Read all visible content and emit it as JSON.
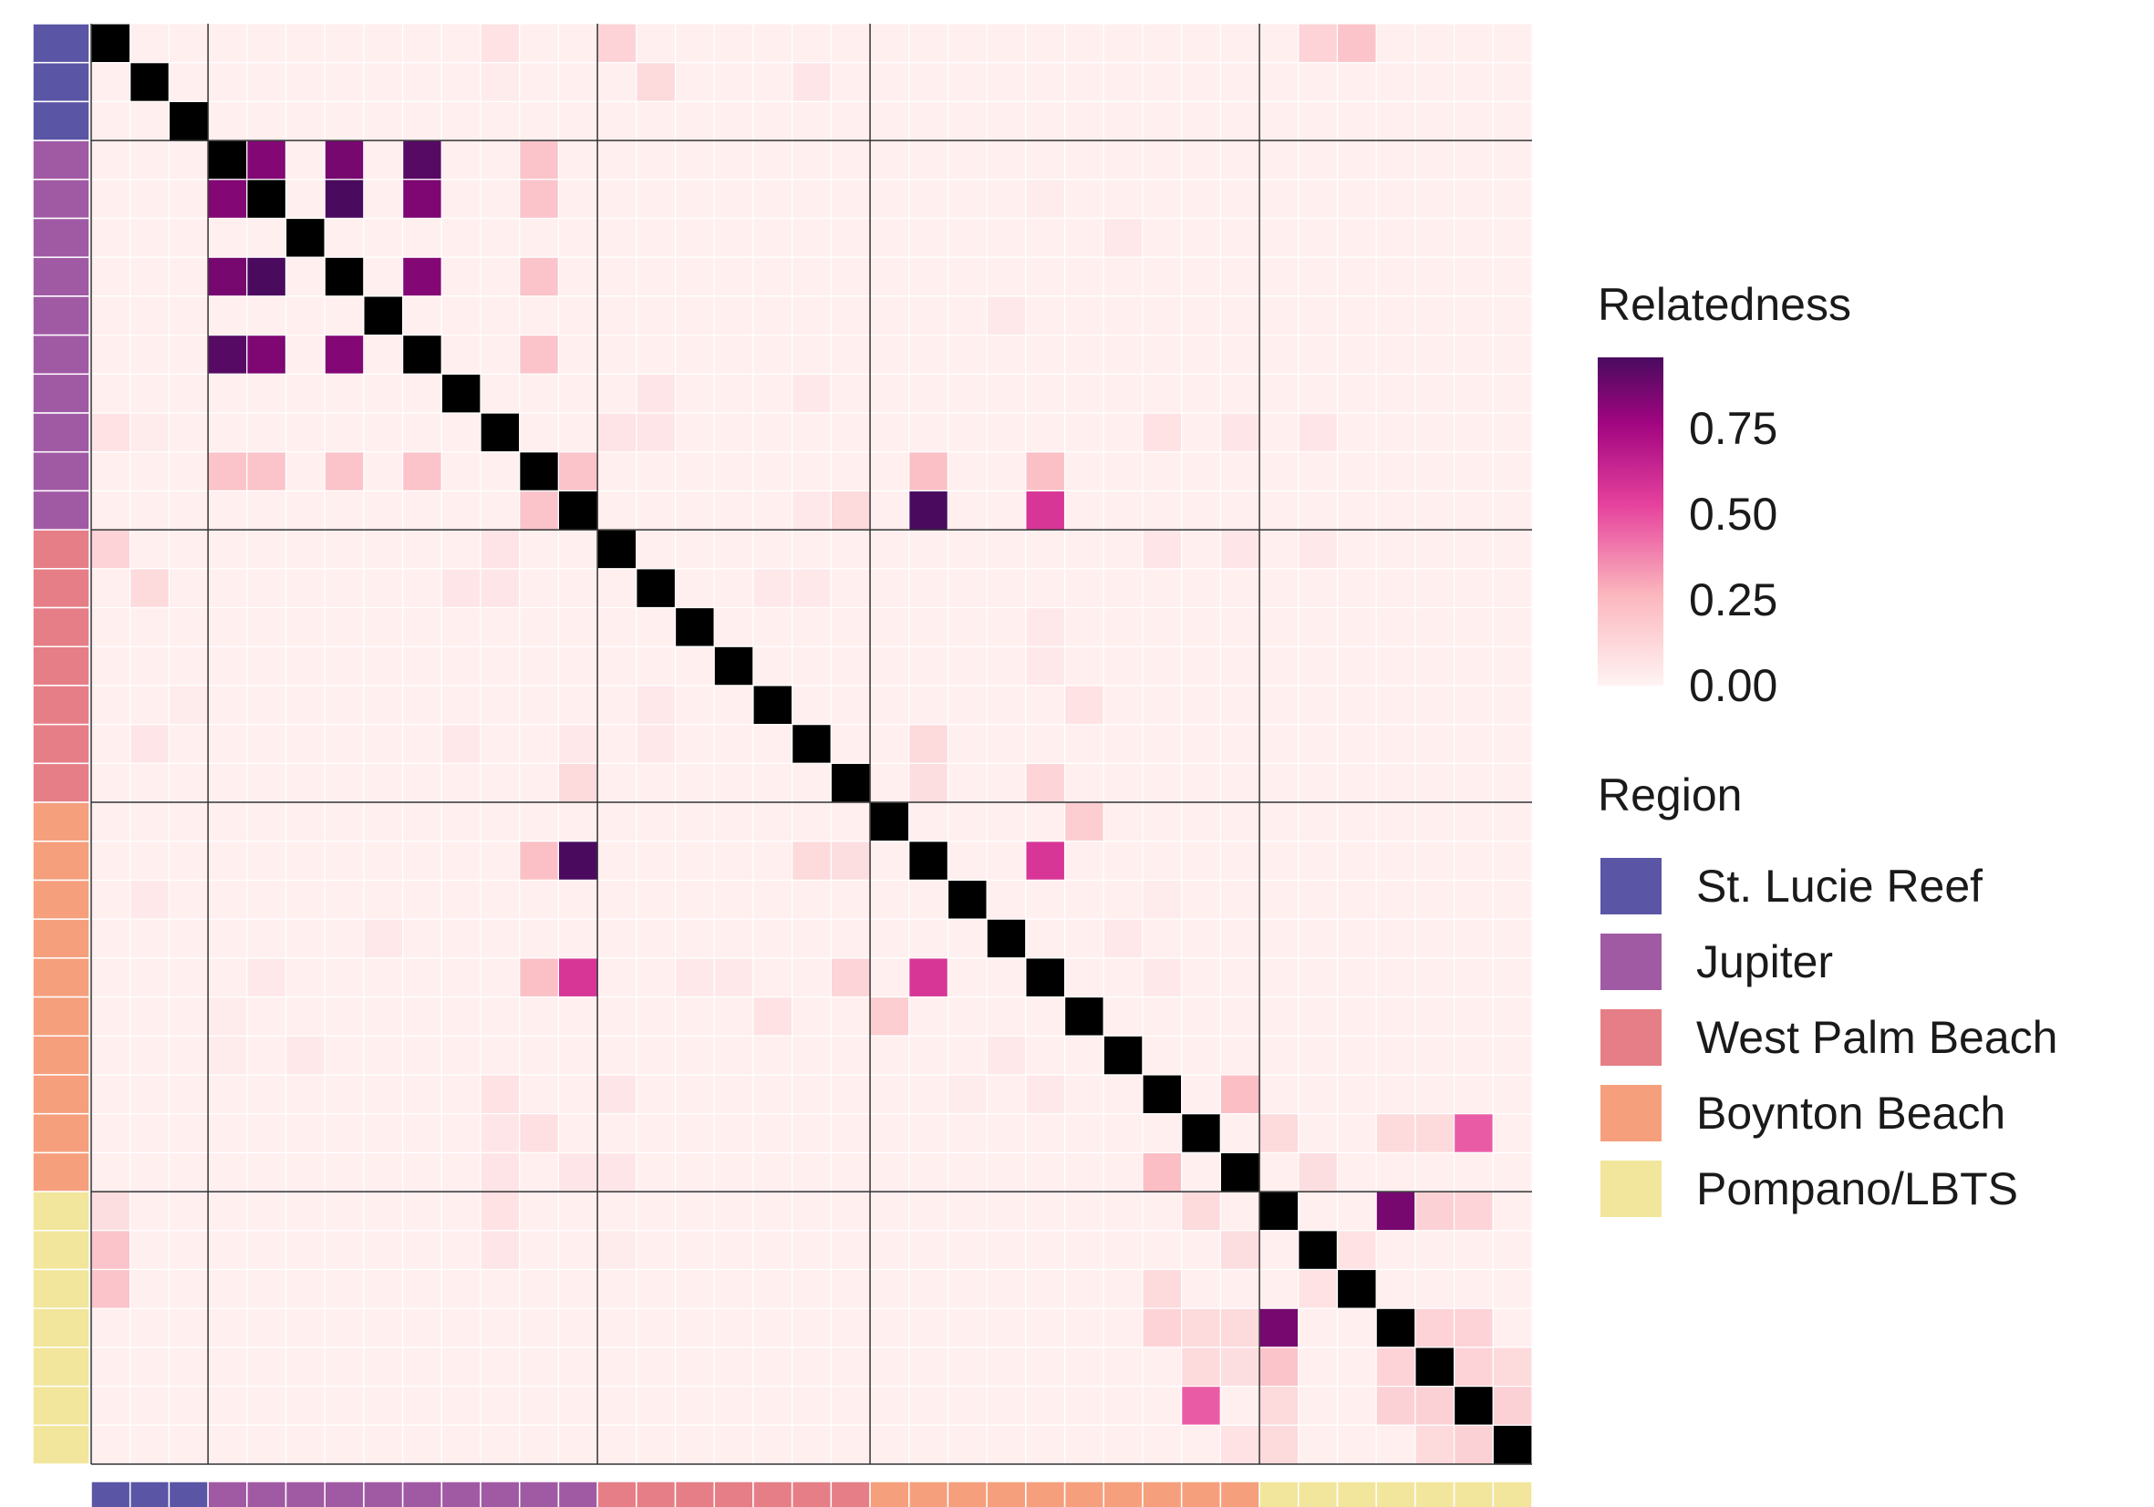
{
  "chart_data": {
    "type": "heatmap",
    "n": 37,
    "groups": [
      {
        "name": "St. Lucie Reef",
        "size": 3,
        "color": "#5b55a6"
      },
      {
        "name": "Jupiter",
        "size": 10,
        "color": "#a05aa4"
      },
      {
        "name": "West Palm Beach",
        "size": 7,
        "color": "#e67e87"
      },
      {
        "name": "Boynton Beach",
        "size": 10,
        "color": "#f59f7d"
      },
      {
        "name": "Pompano/LBTS",
        "size": 7,
        "color": "#f1e69c"
      }
    ],
    "diagonal_value": 1.0,
    "diagonal_color": "#000000",
    "baseline_value": 0.02,
    "values_upper": [
      [
        0,
        10,
        0.08
      ],
      [
        0,
        13,
        0.15
      ],
      [
        0,
        31,
        0.15
      ],
      [
        0,
        32,
        0.22
      ],
      [
        1,
        14,
        0.12
      ],
      [
        1,
        18,
        0.06
      ],
      [
        1,
        10,
        0.04
      ],
      [
        3,
        4,
        0.82
      ],
      [
        3,
        6,
        0.85
      ],
      [
        3,
        8,
        0.92
      ],
      [
        3,
        11,
        0.22
      ],
      [
        4,
        6,
        0.95
      ],
      [
        4,
        8,
        0.83
      ],
      [
        4,
        11,
        0.22
      ],
      [
        6,
        8,
        0.82
      ],
      [
        6,
        11,
        0.22
      ],
      [
        4,
        24,
        0.04
      ],
      [
        5,
        26,
        0.05
      ],
      [
        7,
        23,
        0.05
      ],
      [
        8,
        11,
        0.22
      ],
      [
        9,
        14,
        0.06
      ],
      [
        9,
        18,
        0.05
      ],
      [
        10,
        13,
        0.07
      ],
      [
        10,
        14,
        0.06
      ],
      [
        10,
        27,
        0.08
      ],
      [
        10,
        29,
        0.06
      ],
      [
        10,
        31,
        0.06
      ],
      [
        11,
        12,
        0.22
      ],
      [
        11,
        21,
        0.24
      ],
      [
        11,
        24,
        0.24
      ],
      [
        12,
        19,
        0.12
      ],
      [
        12,
        21,
        0.95
      ],
      [
        12,
        24,
        0.55
      ],
      [
        12,
        18,
        0.05
      ],
      [
        13,
        27,
        0.06
      ],
      [
        13,
        29,
        0.06
      ],
      [
        13,
        31,
        0.05
      ],
      [
        14,
        17,
        0.05
      ],
      [
        14,
        18,
        0.05
      ],
      [
        15,
        24,
        0.05
      ],
      [
        16,
        24,
        0.05
      ],
      [
        17,
        25,
        0.08
      ],
      [
        19,
        21,
        0.14
      ],
      [
        19,
        24,
        0.14
      ],
      [
        20,
        25,
        0.18
      ],
      [
        21,
        24,
        0.55
      ],
      [
        21,
        18,
        0.12
      ],
      [
        21,
        19,
        0.1
      ],
      [
        22,
        27,
        0.04
      ],
      [
        23,
        26,
        0.05
      ],
      [
        24,
        27,
        0.05
      ],
      [
        27,
        29,
        0.25
      ],
      [
        28,
        30,
        0.12
      ],
      [
        28,
        33,
        0.12
      ],
      [
        28,
        34,
        0.12
      ],
      [
        28,
        35,
        0.45
      ],
      [
        29,
        31,
        0.1
      ],
      [
        30,
        33,
        0.85
      ],
      [
        30,
        34,
        0.16
      ],
      [
        30,
        35,
        0.14
      ],
      [
        31,
        32,
        0.08
      ],
      [
        33,
        34,
        0.15
      ],
      [
        33,
        35,
        0.15
      ],
      [
        34,
        35,
        0.15
      ],
      [
        34,
        36,
        0.12
      ],
      [
        35,
        36,
        0.16
      ]
    ],
    "values_lower": [
      [
        28,
        11,
        0.09
      ],
      [
        28,
        10,
        0.06
      ],
      [
        29,
        10,
        0.07
      ],
      [
        31,
        0,
        0.22
      ],
      [
        30,
        0,
        0.1
      ],
      [
        30,
        10,
        0.08
      ],
      [
        29,
        12,
        0.06
      ],
      [
        31,
        13,
        0.04
      ],
      [
        32,
        27,
        0.12
      ],
      [
        33,
        27,
        0.15
      ],
      [
        33,
        29,
        0.12
      ],
      [
        33,
        28,
        0.12
      ],
      [
        34,
        29,
        0.1
      ],
      [
        34,
        30,
        0.22
      ],
      [
        34,
        33,
        0.15
      ],
      [
        35,
        28,
        0.45
      ],
      [
        35,
        30,
        0.12
      ],
      [
        35,
        33,
        0.16
      ],
      [
        35,
        34,
        0.16
      ],
      [
        36,
        29,
        0.08
      ],
      [
        36,
        30,
        0.12
      ],
      [
        22,
        1,
        0.05
      ],
      [
        24,
        4,
        0.05
      ],
      [
        25,
        3,
        0.04
      ],
      [
        26,
        3,
        0.04
      ],
      [
        17,
        2,
        0.04
      ]
    ],
    "legend": {
      "relatedness_title": "Relatedness",
      "ticks": [
        "0.75",
        "0.50",
        "0.25",
        "0.00"
      ],
      "tick_values": [
        0.75,
        0.5,
        0.25,
        0.0
      ],
      "range": [
        0,
        0.95
      ],
      "region_title": "Region",
      "placement": "right"
    },
    "xlabel": "",
    "ylabel": "",
    "grid": false
  }
}
